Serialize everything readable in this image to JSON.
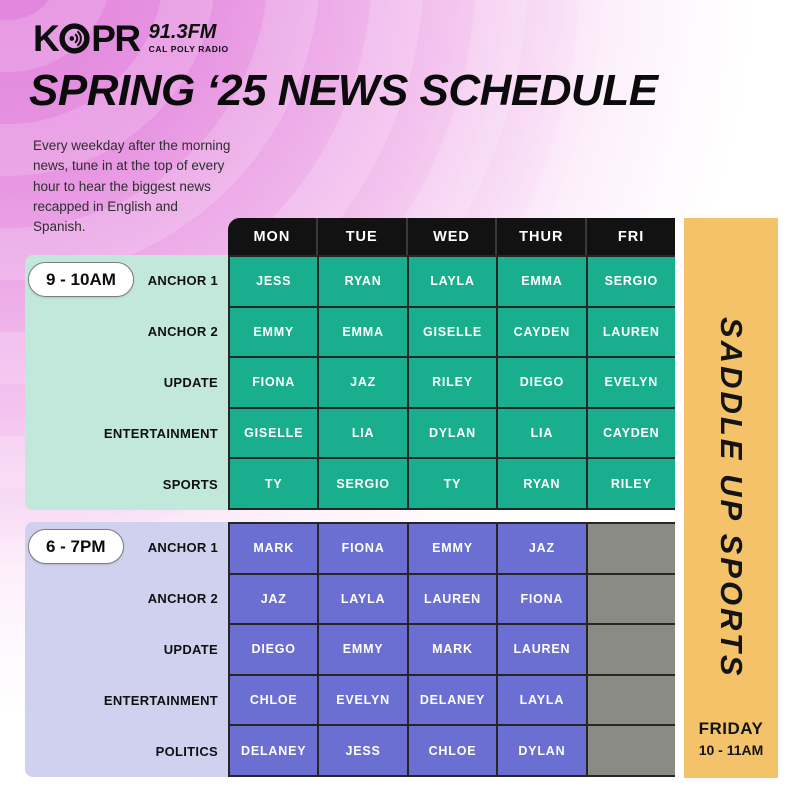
{
  "logo": {
    "call_letters_left": "K",
    "call_letters_right": "PR",
    "frequency": "91.3FM",
    "tagline": "CAL POLY RADIO"
  },
  "title": "SPRING ‘25 NEWS SCHEDULE",
  "description": "Every weekday after the morning news, tune in at the top of every hour to hear the biggest news recapped in English and Spanish.",
  "schedule": {
    "days": [
      "MON",
      "TUE",
      "WED",
      "THUR",
      "FRI"
    ],
    "sections": [
      {
        "time": "9 - 10AM",
        "rows": [
          {
            "label": "ANCHOR 1",
            "cells": [
              "JESS",
              "RYAN",
              "LAYLA",
              "EMMA",
              "SERGIO"
            ]
          },
          {
            "label": "ANCHOR 2",
            "cells": [
              "EMMY",
              "EMMA",
              "GISELLE",
              "CAYDEN",
              "LAUREN"
            ]
          },
          {
            "label": "UPDATE",
            "cells": [
              "FIONA",
              "JAZ",
              "RILEY",
              "DIEGO",
              "EVELYN"
            ]
          },
          {
            "label": "ENTERTAINMENT",
            "cells": [
              "GISELLE",
              "LIA",
              "DYLAN",
              "LIA",
              "CAYDEN"
            ]
          },
          {
            "label": "SPORTS",
            "cells": [
              "TY",
              "SERGIO",
              "TY",
              "RYAN",
              "RILEY"
            ]
          }
        ]
      },
      {
        "time": "6 - 7PM",
        "rows": [
          {
            "label": "ANCHOR 1",
            "cells": [
              "MARK",
              "FIONA",
              "EMMY",
              "JAZ",
              ""
            ]
          },
          {
            "label": "ANCHOR 2",
            "cells": [
              "JAZ",
              "LAYLA",
              "LAUREN",
              "FIONA",
              ""
            ]
          },
          {
            "label": "UPDATE",
            "cells": [
              "DIEGO",
              "EMMY",
              "MARK",
              "LAUREN",
              ""
            ]
          },
          {
            "label": "ENTERTAINMENT",
            "cells": [
              "CHLOE",
              "EVELYN",
              "DELANEY",
              "LAYLA",
              ""
            ]
          },
          {
            "label": "POLITICS",
            "cells": [
              "DELANEY",
              "JESS",
              "CHLOE",
              "DYLAN",
              ""
            ]
          }
        ]
      }
    ]
  },
  "banner": {
    "title": "SADDLE UP SPORTS",
    "day": "FRIDAY",
    "time": "10 - 11AM"
  },
  "colors": {
    "teal": "#19ae8d",
    "teal_light": "#c2e8dc",
    "purple": "#6b6fd2",
    "purple_light": "#d0d1ee",
    "empty_gray": "#8b8b85",
    "banner_yellow": "#f4c369",
    "header_black": "#121212",
    "accent_pink": "#e083dc"
  }
}
